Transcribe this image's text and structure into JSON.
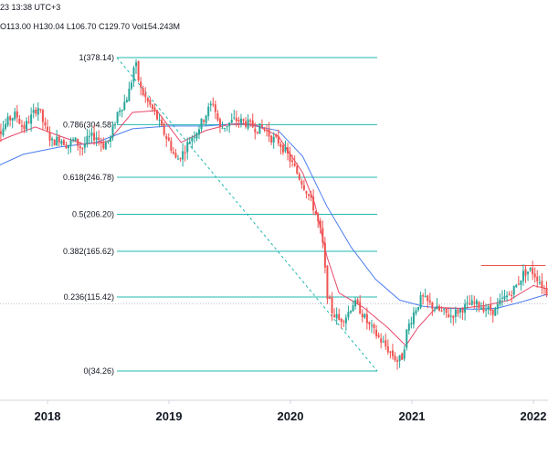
{
  "header": {
    "datetime": "23 13:38 UTC+3",
    "ohlc": [
      {
        "key": "O",
        "value": "113.00"
      },
      {
        "key": "H",
        "value": "130.04"
      },
      {
        "key": "L",
        "value": "106.70"
      },
      {
        "key": "C",
        "value": "129.70"
      },
      {
        "key": "Vol",
        "value": "154.243M"
      }
    ]
  },
  "colors": {
    "up": "#26a69a",
    "down": "#ef5350",
    "fib_line": "#22b8b0",
    "ma_fast": "#e8476a",
    "ma_slow": "#4a7cf0",
    "resistance": "#ef5350",
    "text": "#131722"
  },
  "chart_data": {
    "type": "candlestick",
    "title": "",
    "x_ticks": [
      "2018",
      "2019",
      "2020",
      "2021",
      "2022"
    ],
    "fib_levels": [
      {
        "ratio": "1",
        "price": 378.14,
        "label": "1(378.14)"
      },
      {
        "ratio": "0.786",
        "price": 304.58,
        "label": "0.786(304.58)"
      },
      {
        "ratio": "0.618",
        "price": 246.78,
        "label": "0.618(246.78)"
      },
      {
        "ratio": "0.5",
        "price": 206.2,
        "label": "0.5(206.20)"
      },
      {
        "ratio": "0.382",
        "price": 165.62,
        "label": "0.382(165.62)"
      },
      {
        "ratio": "0.236",
        "price": 115.42,
        "label": "0.236(115.42)"
      },
      {
        "ratio": "0",
        "price": 34.26,
        "label": "0(34.26)"
      }
    ],
    "resistance_level": 150,
    "price_series": [
      [
        2017.52,
        300
      ],
      [
        2017.58,
        308
      ],
      [
        2017.64,
        298
      ],
      [
        2017.7,
        310
      ],
      [
        2017.76,
        316
      ],
      [
        2017.82,
        300
      ],
      [
        2017.88,
        312
      ],
      [
        2017.94,
        325
      ],
      [
        2018.0,
        300
      ],
      [
        2018.06,
        285
      ],
      [
        2018.12,
        290
      ],
      [
        2018.18,
        282
      ],
      [
        2018.24,
        288
      ],
      [
        2018.3,
        278
      ],
      [
        2018.36,
        290
      ],
      [
        2018.42,
        292
      ],
      [
        2018.48,
        282
      ],
      [
        2018.54,
        290
      ],
      [
        2018.6,
        320
      ],
      [
        2018.66,
        330
      ],
      [
        2018.7,
        345
      ],
      [
        2018.74,
        375
      ],
      [
        2018.78,
        345
      ],
      [
        2018.84,
        330
      ],
      [
        2018.9,
        318
      ],
      [
        2018.96,
        300
      ],
      [
        2019.02,
        285
      ],
      [
        2019.08,
        265
      ],
      [
        2019.14,
        275
      ],
      [
        2019.2,
        290
      ],
      [
        2019.26,
        300
      ],
      [
        2019.32,
        315
      ],
      [
        2019.38,
        330
      ],
      [
        2019.44,
        300
      ],
      [
        2019.5,
        305
      ],
      [
        2019.56,
        310
      ],
      [
        2019.62,
        308
      ],
      [
        2019.68,
        305
      ],
      [
        2019.74,
        300
      ],
      [
        2019.8,
        302
      ],
      [
        2019.86,
        290
      ],
      [
        2019.92,
        286
      ],
      [
        2019.98,
        275
      ],
      [
        2020.04,
        260
      ],
      [
        2020.1,
        245
      ],
      [
        2020.16,
        230
      ],
      [
        2020.22,
        210
      ],
      [
        2020.28,
        180
      ],
      [
        2020.32,
        120
      ],
      [
        2020.36,
        100
      ],
      [
        2020.42,
        90
      ],
      [
        2020.48,
        95
      ],
      [
        2020.54,
        110
      ],
      [
        2020.6,
        100
      ],
      [
        2020.66,
        85
      ],
      [
        2020.72,
        75
      ],
      [
        2020.78,
        65
      ],
      [
        2020.84,
        55
      ],
      [
        2020.9,
        45
      ],
      [
        2020.94,
        50
      ],
      [
        2020.98,
        80
      ],
      [
        2021.04,
        100
      ],
      [
        2021.1,
        115
      ],
      [
        2021.16,
        108
      ],
      [
        2021.22,
        102
      ],
      [
        2021.28,
        98
      ],
      [
        2021.34,
        95
      ],
      [
        2021.4,
        100
      ],
      [
        2021.46,
        105
      ],
      [
        2021.52,
        108
      ],
      [
        2021.58,
        106
      ],
      [
        2021.64,
        102
      ],
      [
        2021.7,
        100
      ],
      [
        2021.76,
        112
      ],
      [
        2021.82,
        118
      ],
      [
        2021.88,
        128
      ],
      [
        2021.94,
        142
      ],
      [
        2022.0,
        145
      ],
      [
        2022.06,
        135
      ],
      [
        2022.12,
        122
      ],
      [
        2022.18,
        115
      ],
      [
        2022.24,
        118
      ],
      [
        2022.3,
        115
      ],
      [
        2022.36,
        110
      ],
      [
        2022.42,
        92
      ],
      [
        2022.48,
        85
      ]
    ],
    "ma_fast": [
      [
        2017.52,
        282
      ],
      [
        2017.7,
        292
      ],
      [
        2017.9,
        302
      ],
      [
        2018.1,
        292
      ],
      [
        2018.3,
        283
      ],
      [
        2018.5,
        286
      ],
      [
        2018.7,
        318
      ],
      [
        2018.9,
        320
      ],
      [
        2019.1,
        285
      ],
      [
        2019.3,
        298
      ],
      [
        2019.5,
        305
      ],
      [
        2019.7,
        305
      ],
      [
        2019.9,
        292
      ],
      [
        2020.0,
        272
      ],
      [
        2020.1,
        252
      ],
      [
        2020.2,
        218
      ],
      [
        2020.3,
        160
      ],
      [
        2020.4,
        120
      ],
      [
        2020.6,
        104
      ],
      [
        2020.8,
        82
      ],
      [
        2020.95,
        62
      ],
      [
        2021.05,
        82
      ],
      [
        2021.2,
        104
      ],
      [
        2021.4,
        103
      ],
      [
        2021.6,
        106
      ],
      [
        2021.8,
        112
      ],
      [
        2022.0,
        128
      ],
      [
        2022.2,
        122
      ],
      [
        2022.48,
        100
      ]
    ],
    "ma_slow": [
      [
        2017.52,
        255
      ],
      [
        2017.8,
        272
      ],
      [
        2018.1,
        280
      ],
      [
        2018.4,
        285
      ],
      [
        2018.7,
        300
      ],
      [
        2019.0,
        303
      ],
      [
        2019.3,
        303
      ],
      [
        2019.6,
        306
      ],
      [
        2019.9,
        298
      ],
      [
        2020.1,
        270
      ],
      [
        2020.3,
        215
      ],
      [
        2020.5,
        170
      ],
      [
        2020.7,
        135
      ],
      [
        2020.9,
        112
      ],
      [
        2021.1,
        105
      ],
      [
        2021.3,
        103
      ],
      [
        2021.5,
        102
      ],
      [
        2021.7,
        103
      ],
      [
        2021.9,
        110
      ],
      [
        2022.1,
        118
      ],
      [
        2022.3,
        116
      ],
      [
        2022.48,
        112
      ]
    ]
  }
}
